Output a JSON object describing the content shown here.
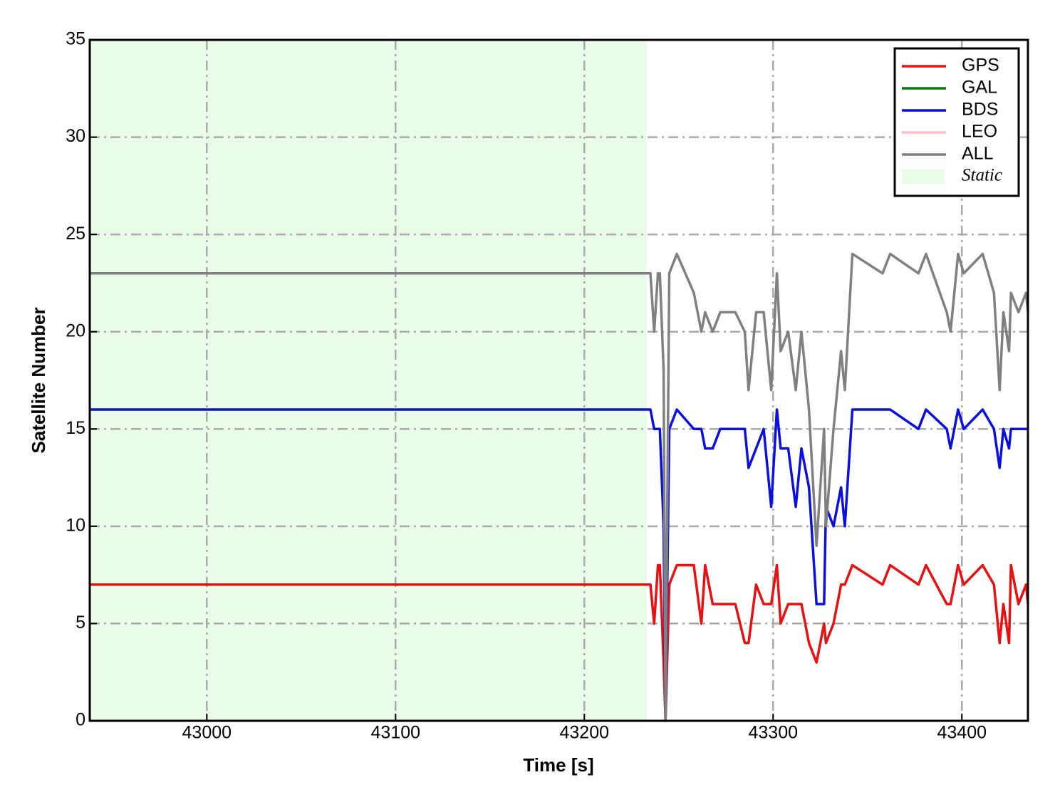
{
  "chart_data": {
    "type": "line",
    "xlabel": "Time [s]",
    "ylabel": "Satellite Number",
    "x": [
      42938,
      43235,
      43237,
      43239,
      43240,
      43242,
      43243,
      43245,
      43249,
      43258,
      43262,
      43264,
      43268,
      43272,
      43280,
      43285,
      43287,
      43291,
      43295,
      43299,
      43302,
      43304,
      43308,
      43312,
      43315,
      43319,
      43323,
      43327,
      43328,
      43332,
      43336,
      43338,
      43342,
      43358,
      43362,
      43377,
      43381,
      43392,
      43394,
      43398,
      43401,
      43411,
      43417,
      43420,
      43422,
      43425,
      43426,
      43430,
      43434,
      43435
    ],
    "series": [
      {
        "name": "GPS",
        "color": "#e81010",
        "values": [
          7,
          7,
          5,
          8,
          8,
          3,
          0,
          7,
          8,
          8,
          5,
          8,
          6,
          6,
          6,
          4,
          4,
          7,
          6,
          6,
          8,
          5,
          6,
          6,
          6,
          4,
          3,
          5,
          4,
          5,
          7,
          7,
          8,
          7,
          8,
          7,
          8,
          6,
          6,
          8,
          7,
          8,
          7,
          4,
          6,
          4,
          8,
          6,
          7,
          6
        ]
      },
      {
        "name": "GAL",
        "color": "#0a7a0a",
        "values": [
          null,
          null,
          null,
          null,
          null,
          null,
          null,
          null,
          null,
          null,
          null,
          null,
          null,
          null,
          null,
          null,
          null,
          null,
          null,
          null,
          null,
          null,
          null,
          null,
          null,
          null,
          null,
          null,
          null,
          null,
          null,
          null,
          null,
          null,
          null,
          null,
          null,
          null,
          null,
          null,
          null,
          null,
          null,
          null,
          null,
          null,
          null,
          null,
          null,
          null
        ]
      },
      {
        "name": "BDS",
        "color": "#0a10e0",
        "values": [
          16,
          16,
          15,
          15,
          15,
          10,
          0,
          15,
          16,
          15,
          15,
          14,
          14,
          15,
          15,
          15,
          13,
          14,
          15,
          11,
          16,
          14,
          14,
          11,
          14,
          12,
          6,
          6,
          11,
          10,
          12,
          10,
          16,
          16,
          16,
          15,
          16,
          15,
          14,
          16,
          15,
          16,
          15,
          13,
          15,
          14,
          15,
          15,
          15,
          15
        ]
      },
      {
        "name": "LEO",
        "color": "#ffc0cb",
        "values": [
          null,
          null,
          null,
          null,
          null,
          null,
          null,
          null,
          null,
          null,
          null,
          null,
          null,
          null,
          null,
          null,
          null,
          null,
          null,
          null,
          null,
          null,
          null,
          null,
          null,
          null,
          null,
          null,
          null,
          null,
          null,
          null,
          null,
          null,
          null,
          null,
          null,
          null,
          null,
          null,
          null,
          null,
          null,
          null,
          null,
          null,
          null,
          null,
          null,
          null
        ]
      },
      {
        "name": "ALL",
        "color": "#808080",
        "values": [
          23,
          23,
          20,
          23,
          23,
          18,
          0,
          23,
          24,
          22,
          20,
          21,
          20,
          21,
          21,
          20,
          17,
          21,
          21,
          17,
          23,
          19,
          20,
          17,
          20,
          16,
          9,
          15,
          10,
          15,
          19,
          17,
          24,
          23,
          24,
          23,
          24,
          21,
          20,
          24,
          23,
          24,
          22,
          17,
          21,
          19,
          22,
          21,
          22,
          21
        ]
      }
    ],
    "span": {
      "x0": 42938,
      "x1": 43233,
      "label": "Static",
      "color": "#e8fce8"
    },
    "xlim": [
      42938,
      43435
    ],
    "ylim": [
      0,
      35
    ],
    "xticks": [
      43000,
      43100,
      43200,
      43300,
      43400
    ],
    "yticks": [
      0,
      5,
      10,
      15,
      20,
      25,
      30,
      35
    ],
    "grid": true,
    "legend": "upper right"
  }
}
